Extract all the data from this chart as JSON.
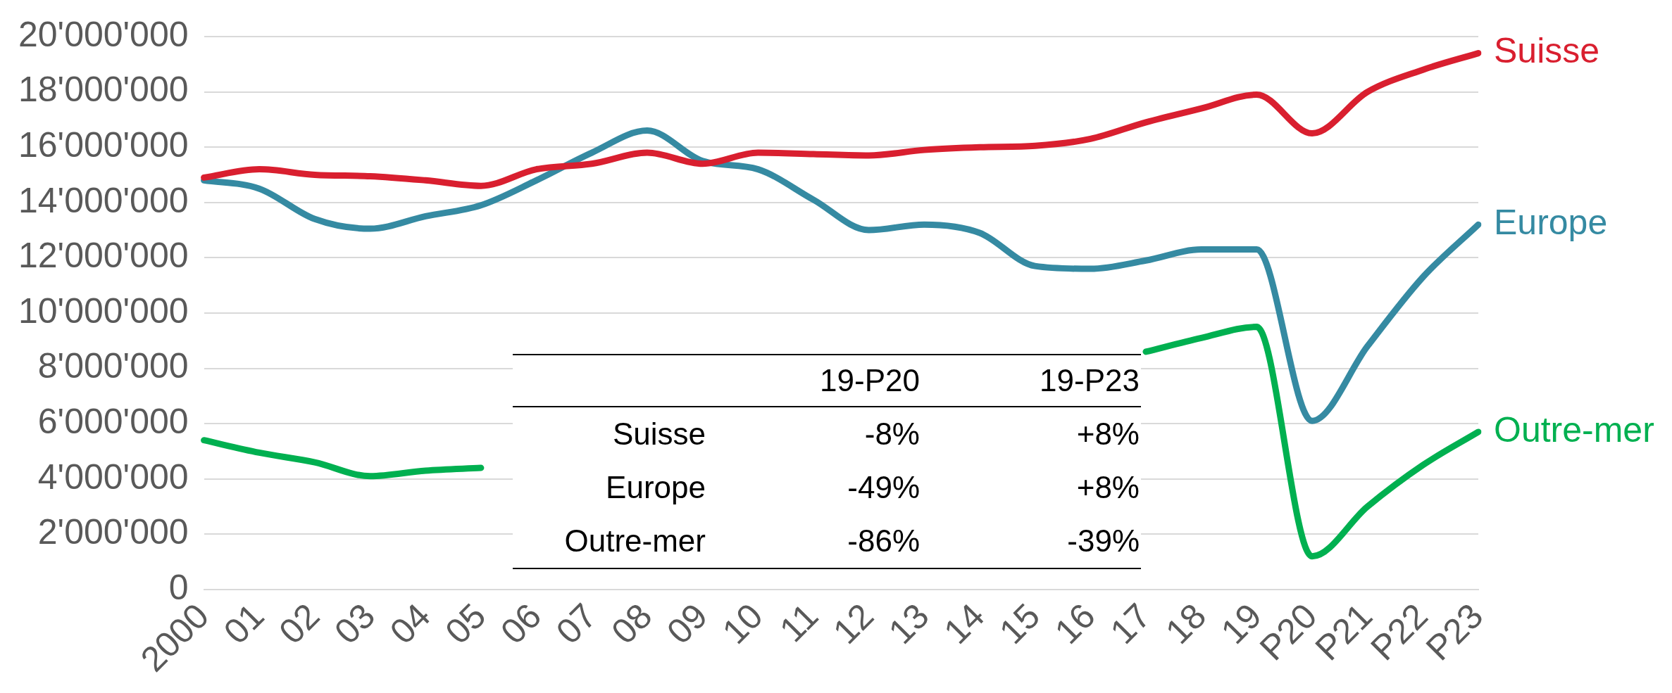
{
  "chart_data": {
    "type": "line",
    "categories": [
      "2000",
      "01",
      "02",
      "03",
      "04",
      "05",
      "06",
      "07",
      "08",
      "09",
      "10",
      "11",
      "12",
      "13",
      "14",
      "15",
      "16",
      "17",
      "18",
      "19",
      "P20",
      "P21",
      "P22",
      "P23"
    ],
    "series": [
      {
        "name": "Suisse",
        "color": "#d91f2f",
        "values": [
          14900000,
          15200000,
          15000000,
          14950000,
          14800000,
          14600000,
          15200000,
          15400000,
          15800000,
          15400000,
          15800000,
          15750000,
          15700000,
          15900000,
          16000000,
          16050000,
          16300000,
          16900000,
          17400000,
          17900000,
          16500000,
          18000000,
          18800000,
          19400000
        ]
      },
      {
        "name": "Europe",
        "color": "#358aa2",
        "values": [
          14800000,
          14500000,
          13400000,
          13050000,
          13500000,
          13900000,
          14800000,
          15800000,
          16600000,
          15500000,
          15200000,
          14100000,
          13000000,
          13200000,
          12900000,
          11700000,
          11600000,
          11900000,
          12300000,
          12300000,
          6100000,
          8800000,
          11300000,
          13200000
        ]
      },
      {
        "name": "Outre-mer",
        "color": "#00b050",
        "values": [
          5400000,
          4950000,
          4600000,
          4100000,
          4300000,
          4400000,
          null,
          null,
          null,
          null,
          null,
          null,
          null,
          null,
          null,
          null,
          null,
          8600000,
          9100000,
          9500000,
          1200000,
          3000000,
          4500000,
          5700000
        ]
      }
    ],
    "ylim": [
      0,
      20000000
    ],
    "yticks": [
      {
        "value": 0,
        "label": "0"
      },
      {
        "value": 2000000,
        "label": "2'000'000"
      },
      {
        "value": 4000000,
        "label": "4'000'000"
      },
      {
        "value": 6000000,
        "label": "6'000'000"
      },
      {
        "value": 8000000,
        "label": "8'000'000"
      },
      {
        "value": 10000000,
        "label": "10'000'000"
      },
      {
        "value": 12000000,
        "label": "12'000'000"
      },
      {
        "value": 14000000,
        "label": "14'000'000"
      },
      {
        "value": 16000000,
        "label": "16'000'000"
      },
      {
        "value": 18000000,
        "label": "18'000'000"
      },
      {
        "value": 20000000,
        "label": "20'000'000"
      }
    ],
    "grid": "y",
    "legend": false,
    "marker": "none",
    "line_style": "solid",
    "annotations": [
      "19-P20",
      "19-P23",
      "Suisse",
      "-8%",
      "+8%",
      "Europe",
      "-49%",
      "+8%",
      "Outre-mer",
      "-86%",
      "-39%"
    ]
  }
}
